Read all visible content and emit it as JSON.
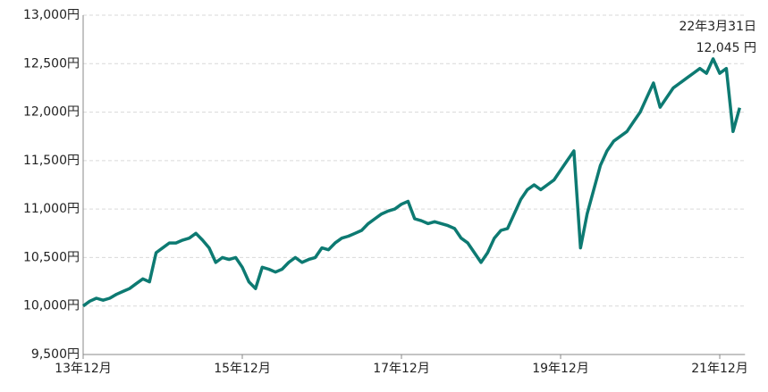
{
  "chart_data": {
    "type": "line",
    "annotations": [
      "22年3月31日",
      "12,045 円"
    ],
    "categories": [
      "13年12月",
      null,
      null,
      null,
      null,
      null,
      null,
      null,
      null,
      null,
      null,
      null,
      null,
      null,
      null,
      null,
      null,
      null,
      null,
      null,
      null,
      null,
      null,
      null,
      "15年12月",
      null,
      null,
      null,
      null,
      null,
      null,
      null,
      null,
      null,
      null,
      null,
      null,
      null,
      null,
      null,
      null,
      null,
      null,
      null,
      null,
      null,
      null,
      null,
      "17年12月",
      null,
      null,
      null,
      null,
      null,
      null,
      null,
      null,
      null,
      null,
      null,
      null,
      null,
      null,
      null,
      null,
      null,
      null,
      null,
      null,
      null,
      null,
      null,
      "19年12月",
      null,
      null,
      null,
      null,
      null,
      null,
      null,
      null,
      null,
      null,
      null,
      null,
      null,
      null,
      null,
      null,
      null,
      null,
      null,
      null,
      null,
      null,
      null,
      "21年12月",
      null,
      null,
      null
    ],
    "series": [
      {
        "color": "#0d7a72",
        "values": [
          10000,
          10050,
          10080,
          10060,
          10080,
          10120,
          10150,
          10180,
          10230,
          10280,
          10250,
          10550,
          10600,
          10650,
          10650,
          10680,
          10700,
          10750,
          10680,
          10600,
          10450,
          10500,
          10480,
          10500,
          10400,
          10250,
          10180,
          10400,
          10380,
          10350,
          10380,
          10450,
          10500,
          10450,
          10480,
          10500,
          10600,
          10580,
          10650,
          10700,
          10720,
          10750,
          10780,
          10850,
          10900,
          10950,
          10980,
          11000,
          11050,
          11080,
          10900,
          10880,
          10850,
          10870,
          10850,
          10830,
          10800,
          10700,
          10650,
          10550,
          10450,
          10550,
          10700,
          10780,
          10800,
          10950,
          11100,
          11200,
          11250,
          11200,
          11250,
          11300,
          11400,
          11500,
          11600,
          10600,
          10950,
          11200,
          11450,
          11600,
          11700,
          11750,
          11800,
          11900,
          12000,
          12150,
          12300,
          12050,
          12150,
          12250,
          12300,
          12350,
          12400,
          12450,
          12400,
          12550,
          12400,
          12450,
          11800,
          12045
        ]
      }
    ],
    "ylim": [
      9500,
      13000
    ],
    "yticks": [
      {
        "value": 9500,
        "label": "9,500円"
      },
      {
        "value": 10000,
        "label": "10,000円"
      },
      {
        "value": 10500,
        "label": "10,500円"
      },
      {
        "value": 11000,
        "label": "11,000円"
      },
      {
        "value": 11500,
        "label": "11,500円"
      },
      {
        "value": 12000,
        "label": "12,000円"
      },
      {
        "value": 12500,
        "label": "12,500円"
      },
      {
        "value": 13000,
        "label": "13,000円"
      }
    ],
    "grid": true
  }
}
